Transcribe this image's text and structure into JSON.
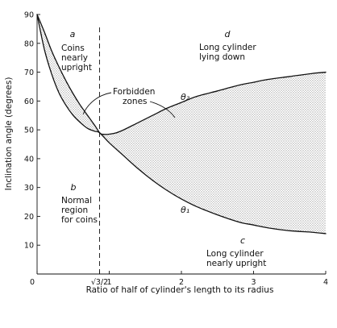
{
  "chart_data": {
    "type": "line",
    "title": "",
    "xlabel": "Ratio of half of cylinder's length to its radius",
    "ylabel": "Inclination angle (degrees)",
    "xlim": [
      0,
      4
    ],
    "ylim": [
      0,
      90
    ],
    "x_ticks": [
      {
        "value": 0,
        "label": "0"
      },
      {
        "value": 0.866,
        "label": "√3/2"
      },
      {
        "value": 1,
        "label": "1"
      },
      {
        "value": 2,
        "label": "2"
      },
      {
        "value": 3,
        "label": "3"
      },
      {
        "value": 4,
        "label": "4"
      }
    ],
    "y_ticks": [
      0,
      10,
      20,
      30,
      40,
      50,
      60,
      70,
      80,
      90
    ],
    "grid": false,
    "vertical_reference": {
      "x": 0.866,
      "style": "dashed"
    },
    "series": [
      {
        "name": "θ₂",
        "x": [
          0,
          0.1,
          0.2,
          0.3,
          0.4,
          0.5,
          0.6,
          0.7,
          0.8,
          0.866,
          0.9,
          1.0,
          1.1,
          1.2,
          1.4,
          1.6,
          1.8,
          2.0,
          2.2,
          2.5,
          2.8,
          3.0,
          3.2,
          3.5,
          3.8,
          4.0
        ],
        "y": [
          90,
          84,
          77.5,
          72,
          67,
          62.5,
          58.5,
          55,
          51.5,
          49,
          48.5,
          48.5,
          49,
          50,
          52.5,
          55,
          57.5,
          59.5,
          61.5,
          63.5,
          65.5,
          66.5,
          67.5,
          68.5,
          69.5,
          70
        ]
      },
      {
        "name": "θ₁",
        "x": [
          0,
          0.1,
          0.2,
          0.3,
          0.4,
          0.5,
          0.6,
          0.7,
          0.8,
          0.866,
          1.0,
          1.2,
          1.4,
          1.6,
          1.8,
          2.0,
          2.2,
          2.5,
          2.8,
          3.0,
          3.2,
          3.5,
          3.8,
          4.0
        ],
        "y": [
          90,
          78,
          69.5,
          63,
          58.5,
          55,
          52.5,
          50.5,
          49.5,
          49,
          45.5,
          41,
          36.5,
          32.5,
          29,
          26,
          23.5,
          20.5,
          18,
          17,
          16,
          15,
          14.5,
          14
        ]
      }
    ],
    "annotations": {
      "region_a": {
        "letter": "a",
        "lines": [
          "Coins",
          "nearly",
          "upright"
        ]
      },
      "region_b": {
        "letter": "b",
        "lines": [
          "Normal",
          "region",
          "for coins"
        ]
      },
      "region_c": {
        "letter": "c",
        "lines": [
          "Long cylinder",
          "nearly upright"
        ]
      },
      "region_d": {
        "letter": "d",
        "lines": [
          "Long cylinder",
          "lying down"
        ]
      },
      "forbidden": {
        "lines": [
          "Forbidden",
          "zones"
        ]
      },
      "theta2_label": "θ₂",
      "theta1_label": "θ₁"
    }
  }
}
